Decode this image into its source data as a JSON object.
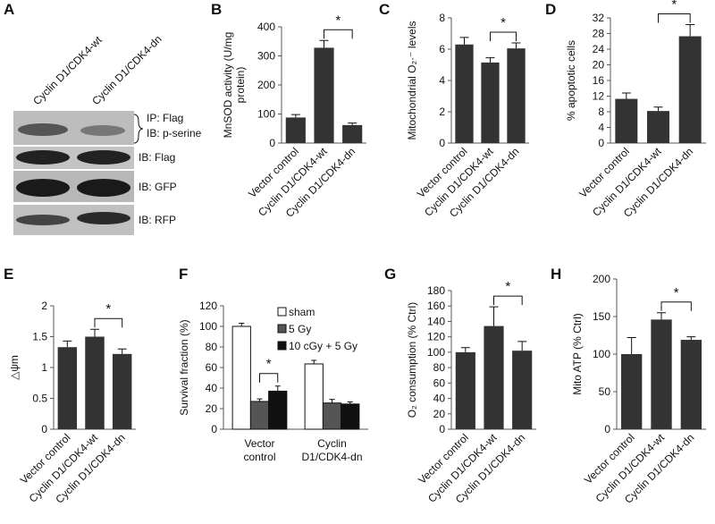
{
  "blot": {
    "letter": "A",
    "columns": [
      "Cyclin D1/CDK4-wt",
      "Cyclin D1/CDK4-dn"
    ],
    "rows": [
      [
        "IP: Flag",
        "IB: p-serine"
      ],
      [
        "IB: Flag"
      ],
      [
        "IB: GFP"
      ],
      [
        "IB: RFP"
      ]
    ]
  },
  "chart_data": [
    {
      "type": "bar",
      "panel": "B",
      "y_label": [
        "MnSOD activity (U/mg",
        "protein)"
      ],
      "categories": [
        "Vector control",
        "Cyclin D1/CDK4-wt",
        "Cyclin D1/CDK4-dn"
      ],
      "values": [
        88,
        328,
        62
      ],
      "errors": [
        10,
        25,
        7
      ],
      "color": "#333333",
      "ylim": [
        0,
        400
      ],
      "yticks": [
        0,
        100,
        200,
        300,
        400
      ],
      "significance": "*"
    },
    {
      "type": "bar",
      "panel": "C",
      "y_label": [
        "Mitochondrial O₂·⁻ levels"
      ],
      "categories": [
        "Vector control",
        "Cyclin D1/CDK4-wt",
        "Cyclin D1/CDK4-dn"
      ],
      "values": [
        6.3,
        5.15,
        6.05
      ],
      "errors": [
        0.45,
        0.3,
        0.35
      ],
      "color": "#333333",
      "ylim": [
        0,
        8
      ],
      "yticks": [
        0,
        2,
        4,
        6,
        8
      ],
      "significance": "*"
    },
    {
      "type": "bar",
      "panel": "D",
      "y_label": [
        "% apoptotic cells"
      ],
      "categories": [
        "Vector control",
        "Cyclin D1/CDK4-wt",
        "Cyclin D1/CDK4-dn"
      ],
      "values": [
        11.3,
        8.2,
        27.3
      ],
      "errors": [
        1.5,
        1.0,
        3.0
      ],
      "color": "#333333",
      "ylim": [
        0,
        32
      ],
      "yticks": [
        0,
        4,
        8,
        12,
        16,
        20,
        24,
        28,
        32
      ],
      "significance": "*"
    },
    {
      "type": "bar",
      "panel": "E",
      "y_label": [
        "△ψm"
      ],
      "categories": [
        "Vector control",
        "Cyclin D1/CDK4-wt",
        "Cyclin D1/CDK4-dn"
      ],
      "values": [
        1.33,
        1.5,
        1.22
      ],
      "errors": [
        0.1,
        0.12,
        0.08
      ],
      "color": "#333333",
      "ylim": [
        0,
        2
      ],
      "yticks": [
        0,
        0.5,
        1,
        1.5,
        2
      ],
      "significance": "*"
    },
    {
      "type": "grouped_bar",
      "panel": "F",
      "y_label": [
        "Survival fraction (%)"
      ],
      "categories": [
        "Vector control",
        "Cyclin D1/CDK4-dn"
      ],
      "series": [
        {
          "name": "sham",
          "color": "#ffffff",
          "values": [
            100,
            63.5
          ],
          "errors": [
            3,
            3.5
          ]
        },
        {
          "name": "5 Gy",
          "color": "#555555",
          "values": [
            27,
            25.5
          ],
          "errors": [
            2.5,
            3.5
          ]
        },
        {
          "name": "10 cGy + 5 Gy",
          "color": "#111111",
          "values": [
            37,
            24.5
          ],
          "errors": [
            5,
            2
          ]
        }
      ],
      "ylim": [
        0,
        120
      ],
      "yticks": [
        0,
        20,
        40,
        60,
        80,
        100,
        120
      ],
      "significance": "*"
    },
    {
      "type": "bar",
      "panel": "G",
      "y_label": [
        "O₂ consumption (% Ctrl)"
      ],
      "categories": [
        "Vector control",
        "Cyclin D1/CDK4-wt",
        "Cyclin D1/CDK4-dn"
      ],
      "values": [
        100,
        134,
        102
      ],
      "errors": [
        6,
        25,
        12
      ],
      "color": "#333333",
      "ylim": [
        0,
        180
      ],
      "yticks": [
        0,
        20,
        40,
        60,
        80,
        100,
        120,
        140,
        160,
        180
      ],
      "significance": "*"
    },
    {
      "type": "bar",
      "panel": "H",
      "y_label": [
        "Mito ATP  (% Ctrl)"
      ],
      "categories": [
        "Vector control",
        "Cyclin D1/CDK4-wt",
        "Cyclin D1/CDK4-dn"
      ],
      "values": [
        100,
        146,
        119
      ],
      "errors": [
        22,
        9,
        4
      ],
      "color": "#333333",
      "ylim": [
        0,
        200
      ],
      "yticks": [
        0,
        50,
        100,
        150,
        200
      ],
      "significance": "*"
    }
  ]
}
